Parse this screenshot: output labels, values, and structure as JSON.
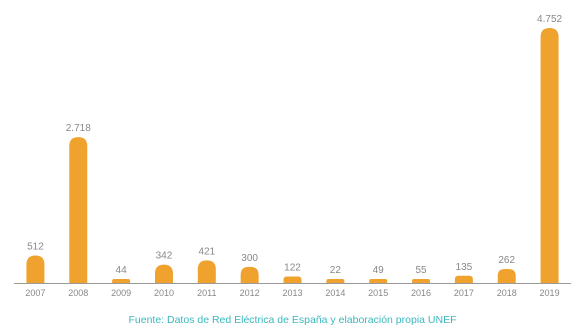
{
  "chart_data": {
    "type": "bar",
    "title": "",
    "xlabel": "",
    "ylabel": "",
    "categories": [
      "2007",
      "2008",
      "2009",
      "2010",
      "2011",
      "2012",
      "2013",
      "2014",
      "2015",
      "2016",
      "2017",
      "2018",
      "2019"
    ],
    "values": [
      512,
      2718,
      44,
      342,
      421,
      300,
      122,
      22,
      49,
      55,
      135,
      262,
      4752
    ],
    "value_labels": [
      "512",
      "2.718",
      "44",
      "342",
      "421",
      "300",
      "122",
      "22",
      "49",
      "55",
      "135",
      "262",
      "4.752"
    ],
    "ylim": [
      0,
      4752
    ],
    "grid": false,
    "legend": "none",
    "bar_color": "#f0a22f",
    "axis_color": "#9a9a9a",
    "label_color": "#888888"
  },
  "source": "Fuente: Datos de Red Eléctrica de España y elaboración propia UNEF",
  "colors": {
    "accent": "#3bb8be"
  }
}
